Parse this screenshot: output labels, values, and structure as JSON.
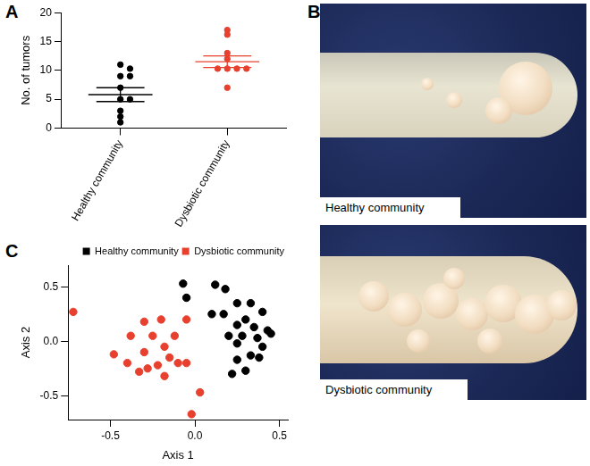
{
  "chart_data": [
    {
      "type": "dot_plot",
      "label": "A",
      "y_label": "No. of tumors",
      "categories": [
        "Healthy community",
        "Dysbiotic community"
      ],
      "colors": [
        "#000000",
        "#e8402f"
      ],
      "values": [
        [
          11,
          10.3,
          9,
          9,
          7,
          5,
          5,
          3,
          2,
          1
        ],
        [
          17,
          16.2,
          13,
          12,
          10.3,
          10.3,
          10.3,
          10.3,
          7
        ]
      ],
      "mean": [
        5.8,
        11.5
      ],
      "sem": [
        1.2,
        1.0
      ],
      "ylim": [
        0,
        20
      ],
      "yticks": [
        0,
        5,
        10,
        15,
        20
      ],
      "grid": false
    },
    {
      "type": "scatter",
      "label": "C",
      "x_label": "Axis 1",
      "y_label": "Axis 2",
      "xlim": [
        -0.75,
        0.55
      ],
      "xticks": [
        -0.5,
        {
          "value": 0,
          "label": "0.0"
        },
        0.5
      ],
      "ylim": [
        -0.72,
        0.7
      ],
      "yticks": [
        -0.5,
        {
          "value": 0,
          "label": "0.0"
        },
        0.5
      ],
      "grid": false,
      "legend": "top-right",
      "series": [
        {
          "name": "Healthy community",
          "color": "#000000",
          "marker": "circle",
          "x": [
            -0.07,
            -0.05,
            0.12,
            0.18,
            0.25,
            0.33,
            0.4,
            0.1,
            0.17,
            0.25,
            0.2,
            0.28,
            0.35,
            0.3,
            0.43,
            0.37,
            0.4,
            0.25,
            0.33,
            0.25,
            0.3,
            0.22,
            0.38,
            0.45
          ],
          "values": [
            0.53,
            0.4,
            0.52,
            0.48,
            0.35,
            0.35,
            0.27,
            0.25,
            0.25,
            0.15,
            0.05,
            0.05,
            0.13,
            0.2,
            0.1,
            0.03,
            -0.05,
            -0.02,
            -0.13,
            -0.17,
            -0.27,
            -0.3,
            -0.15,
            0.07
          ]
        },
        {
          "name": "Dysbiotic community",
          "color": "#e8402f",
          "marker": "circle",
          "x": [
            -0.72,
            -0.48,
            -0.38,
            -0.4,
            -0.3,
            -0.2,
            -0.25,
            -0.33,
            -0.28,
            -0.22,
            -0.18,
            -0.12,
            -0.1,
            -0.05,
            -0.18,
            -0.05,
            -0.15,
            0.03,
            -0.02,
            -0.3
          ],
          "values": [
            0.27,
            -0.12,
            0.05,
            -0.2,
            0.18,
            0.2,
            0.05,
            -0.28,
            -0.25,
            -0.22,
            -0.32,
            0.05,
            -0.2,
            -0.2,
            -0.05,
            0.2,
            -0.15,
            -0.47,
            -0.67,
            -0.1
          ]
        }
      ]
    }
  ],
  "photos": {
    "label": "B",
    "captions": [
      "Healthy community",
      "Dysbiotic community"
    ]
  }
}
